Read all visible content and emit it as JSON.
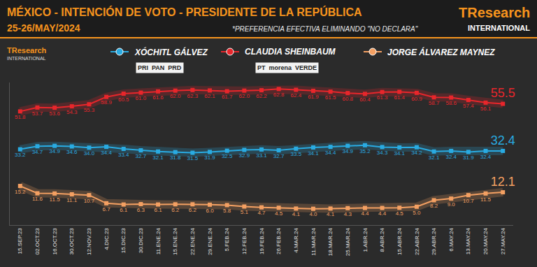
{
  "logo": {
    "name": "TResearch",
    "sub": "INTERNATIONAL"
  },
  "chart_data": {
    "type": "line",
    "title": "MÉXICO - INTENCIÓN DE VOTO - PRESIDENTE DE LA REPÚBLICA",
    "subtitle": "25-26/MAY/2024",
    "note": "*PREFERENCIA EFECTIVA ELIMINANDO \"NO DECLARA\"",
    "categories": [
      "15.SEP.23",
      "02.OCT.23",
      "16.OCT.23",
      "30.OCT.23",
      "12.NOV.23",
      "4.DIC.23",
      "15.DIC.23",
      "30.DIC.23",
      "11.ENE.24",
      "15.ENE.24",
      "22.ENE.24",
      "29.ENE.24",
      "5.FEB.24",
      "12.FEB.24",
      "19.FEB.24",
      "26.FEB.24",
      "4.MAR.24",
      "11.MAR.24",
      "18.MAR.24",
      "25.MAR.24",
      "1.ABR.24",
      "8.ABR.24",
      "15.ABR.24",
      "22.ABR.24",
      "29.ABR.24",
      "6.MAY.24",
      "13.MAY.24",
      "20.MAY.24",
      "27.MAY.24"
    ],
    "series": [
      {
        "name": "XÓCHITL GÁLVEZ",
        "color": "#29abe2",
        "parties": [
          "PRI",
          "PAN",
          "PRD"
        ],
        "values": [
          33.2,
          34.7,
          34.9,
          34.6,
          34.0,
          34.4,
          33.4,
          32.7,
          32.1,
          31.8,
          31.5,
          31.9,
          32.5,
          32.9,
          33.1,
          32.7,
          33.5,
          34.1,
          34.4,
          34.9,
          35.2,
          34.3,
          34.1,
          34.2,
          32.1,
          32.4,
          31.9,
          32.4,
          32.4
        ]
      },
      {
        "name": "CLAUDIA SHEINBAUM",
        "color": "#e8262b",
        "parties": [
          "PT",
          "morena",
          "VERDE"
        ],
        "values": [
          51.8,
          53.7,
          53.6,
          54.3,
          55.3,
          58.9,
          60.5,
          61.0,
          61.6,
          62.0,
          62.3,
          62.1,
          61.7,
          62.0,
          62.2,
          62.8,
          62.4,
          61.9,
          61.5,
          60.8,
          60.4,
          61.3,
          61.4,
          60.9,
          58.7,
          58.6,
          57.4,
          56.1,
          55.5
        ]
      },
      {
        "name": "JORGE ÁLVAREZ MAYNEZ",
        "color": "#f4a062",
        "parties": [],
        "values": [
          15.2,
          11.6,
          11.5,
          11.1,
          10.7,
          6.7,
          6.1,
          6.3,
          6.1,
          6.2,
          6.2,
          6.0,
          5.8,
          5.1,
          4.7,
          4.5,
          4.1,
          4.0,
          4.1,
          4.3,
          4.4,
          4.4,
          4.5,
          5.0,
          8.2,
          9.0,
          10.7,
          11.5,
          12.1
        ]
      }
    ],
    "ylim": [
      -4,
      66
    ],
    "yticks": [],
    "grid": false,
    "data_labels": true,
    "tick_labels": "x",
    "marker": "square"
  }
}
